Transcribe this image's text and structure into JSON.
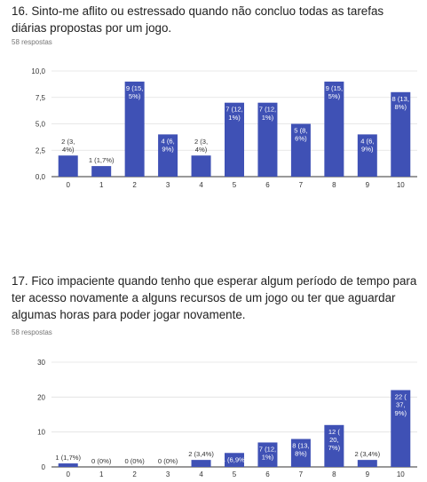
{
  "questions": [
    {
      "title": "16. Sinto-me aflito ou estressado quando não concluo todas as tarefas diárias propostas por um jogo.",
      "responses": "58 respostas"
    },
    {
      "title": "17. Fico impaciente quando tenho que esperar algum período de tempo para ter acesso novamente a alguns recursos de um jogo ou ter que aguardar algumas horas para poder jogar novamente.",
      "responses": "58 respostas"
    }
  ],
  "colors": {
    "bar": "#3f51b5",
    "grid": "#e0e0e0",
    "axis": "#333333"
  },
  "chart_data": [
    {
      "type": "bar",
      "categories": [
        "0",
        "1",
        "2",
        "3",
        "4",
        "5",
        "6",
        "7",
        "8",
        "9",
        "10"
      ],
      "values": [
        2,
        1,
        9,
        4,
        2,
        7,
        7,
        5,
        9,
        4,
        8
      ],
      "value_labels": [
        [
          "2 (3,",
          "4%)"
        ],
        [
          "1 (1,7%)"
        ],
        [
          "9 (15,",
          "5%)"
        ],
        [
          "4 (6,",
          "9%)"
        ],
        [
          "2 (3,",
          "4%)"
        ],
        [
          "7 (12,",
          "1%)"
        ],
        [
          "7 (12,",
          "1%)"
        ],
        [
          "5 (8,",
          "6%)"
        ],
        [
          "9 (15,",
          "5%)"
        ],
        [
          "4 (6,",
          "9%)"
        ],
        [
          "8 (13,",
          "8%)"
        ]
      ],
      "yticks": [
        "0,0",
        "2,5",
        "5,0",
        "7,5",
        "10,0"
      ],
      "ytick_values": [
        0,
        2.5,
        5,
        7.5,
        10
      ],
      "ylim": [
        0,
        10
      ],
      "grid": true,
      "legend": "none"
    },
    {
      "type": "bar",
      "categories": [
        "0",
        "1",
        "2",
        "3",
        "4",
        "5",
        "6",
        "7",
        "8",
        "9",
        "10"
      ],
      "values": [
        1,
        0,
        0,
        0,
        2,
        4,
        7,
        8,
        12,
        2,
        22
      ],
      "value_labels": [
        [
          "1 (1,7%)"
        ],
        [
          "0 (0%)"
        ],
        [
          "0 (0%)"
        ],
        [
          "0 (0%)"
        ],
        [
          "2 (3,4%)"
        ],
        [
          "4 (6,9%)"
        ],
        [
          "7 (12,",
          "1%)"
        ],
        [
          "8 (13,",
          "8%)"
        ],
        [
          "12 (",
          "20,",
          "7%)"
        ],
        [
          "2 (3,4%)"
        ],
        [
          "22 (",
          "37,",
          "9%)"
        ]
      ],
      "yticks": [
        "0",
        "10",
        "20",
        "30"
      ],
      "ytick_values": [
        0,
        10,
        20,
        30
      ],
      "ylim": [
        0,
        30
      ],
      "grid": true,
      "legend": "none"
    }
  ]
}
